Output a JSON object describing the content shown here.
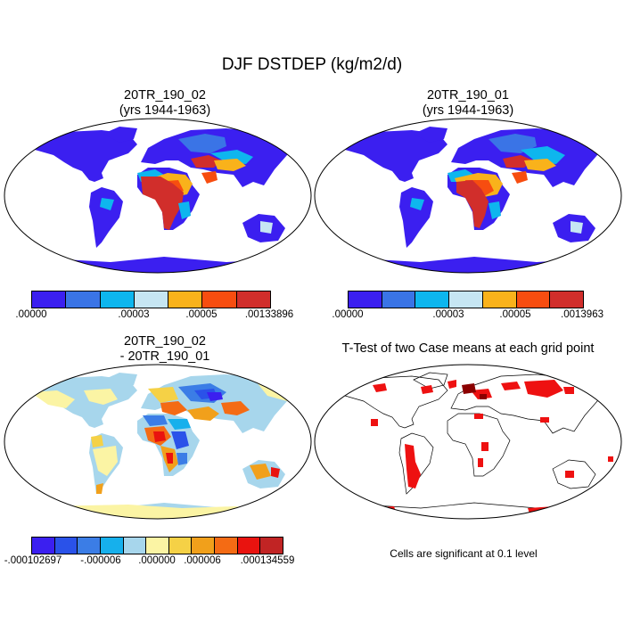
{
  "figure": {
    "title": "DJF DSTDEP (kg/m2/d)"
  },
  "panels": [
    {
      "id": "case1",
      "title_line1": "20TR_190_02",
      "title_line2": "(yrs 1944-1963)",
      "colorbar": {
        "colors": [
          "#3b1ff0",
          "#3a74e6",
          "#0eb6ee",
          "#c6e6f3",
          "#f9b21b",
          "#f74d10",
          "#d12e2b"
        ],
        "tick_labels": [
          ".00000",
          ".00003",
          ".00005",
          ".00133896"
        ]
      }
    },
    {
      "id": "case2",
      "title_line1": "20TR_190_01",
      "title_line2": "(yrs 1944-1963)",
      "colorbar": {
        "colors": [
          "#3b1ff0",
          "#3a74e6",
          "#0eb6ee",
          "#c6e6f3",
          "#f9b21b",
          "#f74d10",
          "#d12e2b"
        ],
        "tick_labels": [
          ".00000",
          ".00003",
          ".00005",
          ".0013963"
        ]
      }
    },
    {
      "id": "difference",
      "title_line1": "20TR_190_02",
      "title_line2": "- 20TR_190_01",
      "colorbar": {
        "colors": [
          "#3b1ff0",
          "#2a52e9",
          "#3b7de6",
          "#16b0ec",
          "#a7d6ec",
          "#fbf4a4",
          "#f5d146",
          "#f1a01b",
          "#f46b14",
          "#e9130f",
          "#c12424"
        ],
        "tick_labels": [
          "-.000102697",
          "-.000006",
          ".000000",
          ".000006",
          ".000134559"
        ]
      }
    },
    {
      "id": "ttest",
      "title_line1": "T-Test of two Case means at each grid point",
      "note": "Cells are significant at 0.1 level",
      "significant_color": "#ee1111",
      "highly_significant_color": "#8b0000"
    }
  ]
}
